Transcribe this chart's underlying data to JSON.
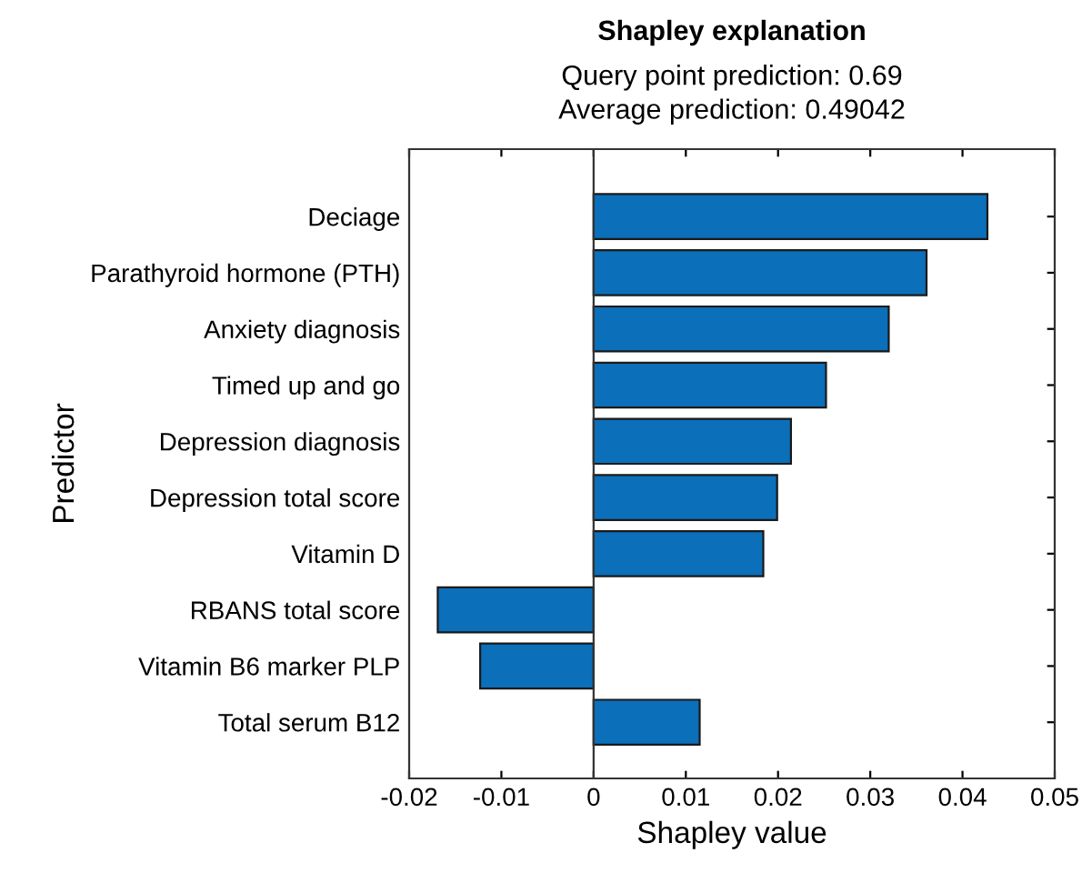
{
  "chart_data": {
    "type": "bar",
    "orientation": "horizontal",
    "title": "Shapley explanation",
    "subtitle": "Query point prediction: 0.69\nAverage prediction: 0.49042",
    "xlabel": "Shapley value",
    "ylabel": "Predictor",
    "categories": [
      "Deciage",
      "Parathyroid hormone (PTH)",
      "Anxiety diagnosis",
      "Timed up and go",
      "Depression diagnosis",
      "Depression total score",
      "Vitamin D",
      "RBANS total score",
      "Vitamin B6 marker PLP",
      "Total serum B12"
    ],
    "values": [
      0.0427,
      0.0361,
      0.032,
      0.0252,
      0.0214,
      0.0199,
      0.0184,
      -0.0169,
      -0.0123,
      0.0115
    ],
    "color": "#0b6fba",
    "xlim": [
      -0.02,
      0.05
    ],
    "xticks": [
      -0.02,
      -0.01,
      0,
      0.01,
      0.02,
      0.03,
      0.04,
      0.05
    ],
    "ref_lines": [
      {
        "axis": "x",
        "value": 0,
        "color": "#333333"
      }
    ]
  }
}
